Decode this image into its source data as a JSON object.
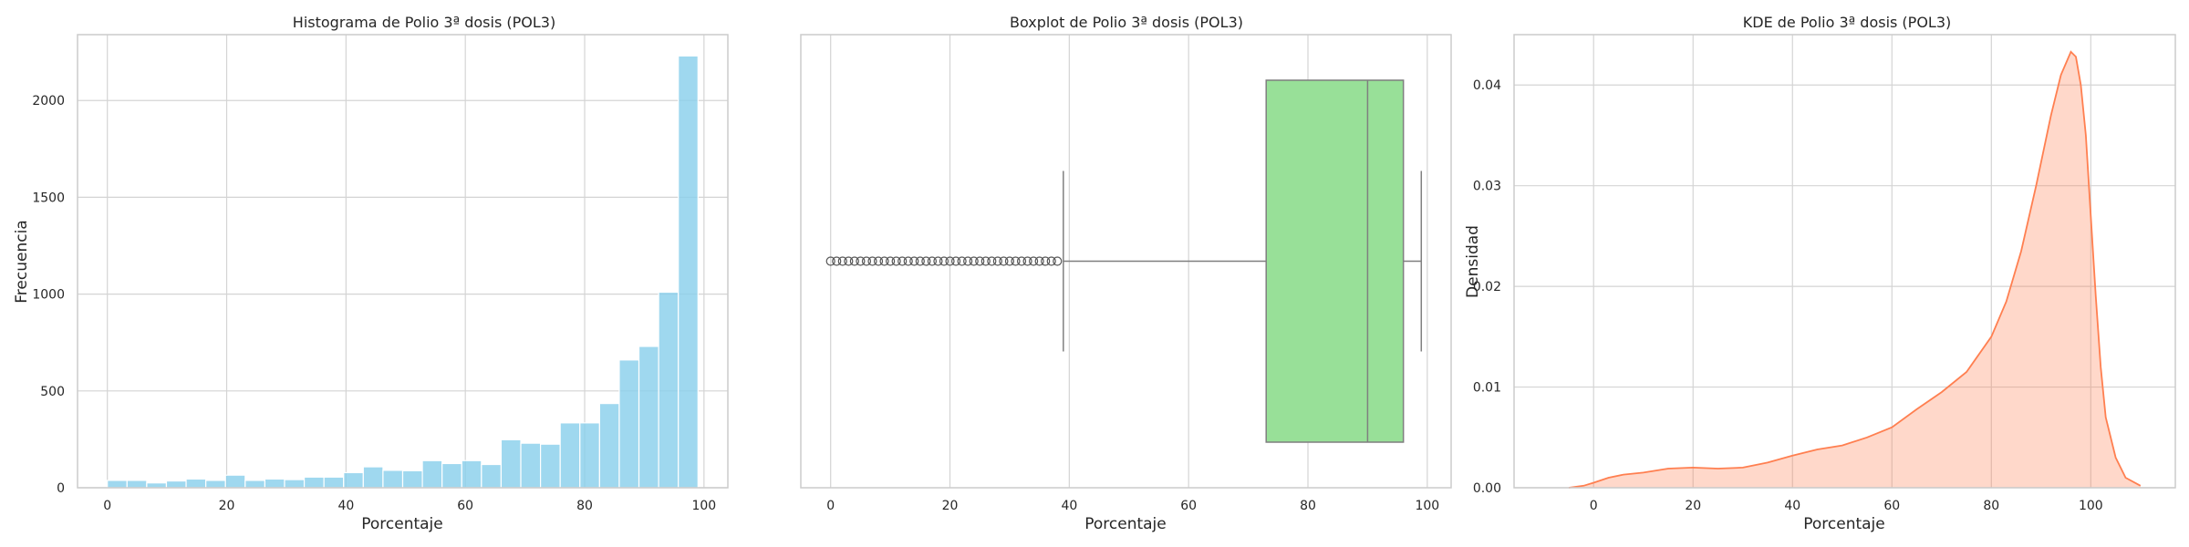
{
  "chart_data": [
    {
      "type": "bar",
      "title": "Histograma de Polio 3ª dosis (POL3)",
      "xlabel": "Porcentaje",
      "ylabel": "Frecuencia",
      "xlim": [
        -5,
        104
      ],
      "ylim": [
        0,
        2340
      ],
      "grid": true,
      "x_ticks": [
        0,
        20,
        40,
        60,
        80,
        100
      ],
      "y_ticks": [
        0,
        500,
        1000,
        1500,
        2000
      ],
      "color": "#87ceeb",
      "bin_width": 3.3,
      "bins": [
        {
          "x0": 0.0,
          "count": 38
        },
        {
          "x0": 3.3,
          "count": 38
        },
        {
          "x0": 6.6,
          "count": 25
        },
        {
          "x0": 9.9,
          "count": 35
        },
        {
          "x0": 13.2,
          "count": 45
        },
        {
          "x0": 16.5,
          "count": 38
        },
        {
          "x0": 19.8,
          "count": 65
        },
        {
          "x0": 23.1,
          "count": 38
        },
        {
          "x0": 26.4,
          "count": 45
        },
        {
          "x0": 29.7,
          "count": 42
        },
        {
          "x0": 33.0,
          "count": 55
        },
        {
          "x0": 36.3,
          "count": 55
        },
        {
          "x0": 39.6,
          "count": 78
        },
        {
          "x0": 42.9,
          "count": 108
        },
        {
          "x0": 46.2,
          "count": 90
        },
        {
          "x0": 49.5,
          "count": 88
        },
        {
          "x0": 52.8,
          "count": 140
        },
        {
          "x0": 56.1,
          "count": 125
        },
        {
          "x0": 59.4,
          "count": 140
        },
        {
          "x0": 62.7,
          "count": 120
        },
        {
          "x0": 66.0,
          "count": 248
        },
        {
          "x0": 69.3,
          "count": 230
        },
        {
          "x0": 72.6,
          "count": 225
        },
        {
          "x0": 75.9,
          "count": 335
        },
        {
          "x0": 79.2,
          "count": 335
        },
        {
          "x0": 82.5,
          "count": 435
        },
        {
          "x0": 85.8,
          "count": 660
        },
        {
          "x0": 89.1,
          "count": 730
        },
        {
          "x0": 92.4,
          "count": 1010
        },
        {
          "x0": 95.7,
          "count": 2230
        }
      ]
    },
    {
      "type": "boxplot",
      "title": "Boxplot de Polio 3ª dosis (POL3)",
      "xlabel": "Porcentaje",
      "xlim": [
        -5,
        104
      ],
      "grid": true,
      "x_ticks": [
        0,
        20,
        40,
        60,
        80,
        100
      ],
      "color": "#98e098",
      "whisker_low": 39,
      "q1": 73,
      "median": 90,
      "q3": 96,
      "whisker_high": 99,
      "outliers": [
        0,
        1,
        2,
        3,
        4,
        5,
        6,
        7,
        8,
        9,
        10,
        11,
        12,
        13,
        14,
        15,
        16,
        17,
        18,
        19,
        20,
        21,
        22,
        23,
        24,
        25,
        26,
        27,
        28,
        29,
        30,
        31,
        32,
        33,
        34,
        35,
        36,
        37,
        38
      ]
    },
    {
      "type": "area",
      "title": "KDE de Polio 3ª dosis (POL3)",
      "xlabel": "Porcentaje",
      "ylabel": "Densidad",
      "xlim": [
        -16,
        117
      ],
      "ylim": [
        0,
        0.045
      ],
      "grid": true,
      "x_ticks": [
        0,
        20,
        40,
        60,
        80,
        100
      ],
      "y_ticks": [
        0,
        0.01,
        0.02,
        0.03,
        0.04
      ],
      "y_tick_labels": [
        "0.00",
        "0.01",
        "0.02",
        "0.03",
        "0.04"
      ],
      "color": "#ff7f50",
      "points": [
        [
          -5,
          0
        ],
        [
          -2,
          0.0002
        ],
        [
          0,
          0.0005
        ],
        [
          3,
          0.001
        ],
        [
          6,
          0.0013
        ],
        [
          10,
          0.0015
        ],
        [
          15,
          0.0019
        ],
        [
          20,
          0.002
        ],
        [
          25,
          0.0019
        ],
        [
          30,
          0.002
        ],
        [
          35,
          0.0025
        ],
        [
          40,
          0.0032
        ],
        [
          45,
          0.0038
        ],
        [
          50,
          0.0042
        ],
        [
          55,
          0.005
        ],
        [
          60,
          0.006
        ],
        [
          65,
          0.0078
        ],
        [
          70,
          0.0095
        ],
        [
          75,
          0.0115
        ],
        [
          80,
          0.015
        ],
        [
          83,
          0.0185
        ],
        [
          86,
          0.0235
        ],
        [
          89,
          0.03
        ],
        [
          92,
          0.037
        ],
        [
          94,
          0.041
        ],
        [
          96,
          0.0433
        ],
        [
          97,
          0.0428
        ],
        [
          98,
          0.04
        ],
        [
          99,
          0.035
        ],
        [
          100,
          0.027
        ],
        [
          101,
          0.019
        ],
        [
          102,
          0.012
        ],
        [
          103,
          0.007
        ],
        [
          105,
          0.003
        ],
        [
          107,
          0.001
        ],
        [
          110,
          0.0002
        ]
      ]
    }
  ]
}
